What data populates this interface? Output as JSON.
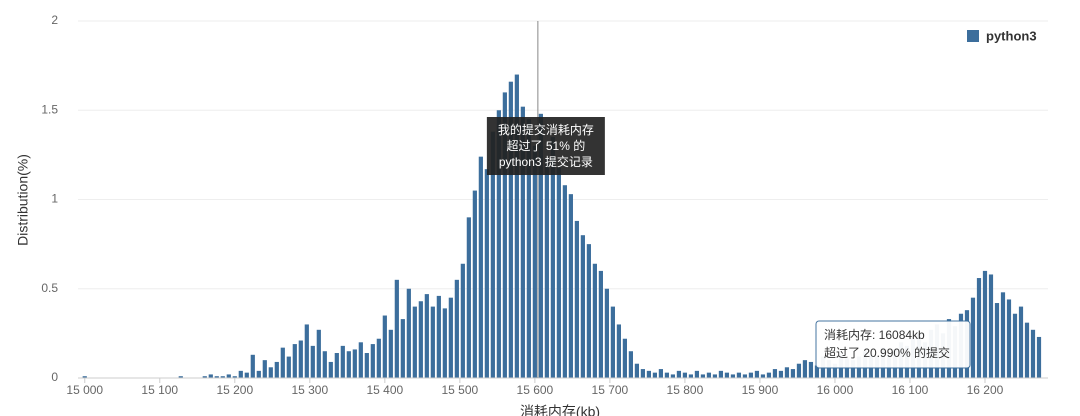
{
  "chart_data": {
    "type": "bar",
    "xlabel": "消耗内存(kb)",
    "ylabel": "Distribution(%)",
    "series": [
      {
        "name": "python3",
        "color": "#3c6e9c"
      }
    ],
    "x": [
      15000,
      15008,
      15016,
      15024,
      15032,
      15040,
      15048,
      15056,
      15064,
      15072,
      15080,
      15088,
      15096,
      15104,
      15112,
      15120,
      15128,
      15136,
      15144,
      15152,
      15160,
      15168,
      15176,
      15184,
      15192,
      15200,
      15208,
      15216,
      15224,
      15232,
      15240,
      15248,
      15256,
      15264,
      15272,
      15280,
      15288,
      15296,
      15304,
      15312,
      15320,
      15328,
      15336,
      15344,
      15352,
      15360,
      15368,
      15376,
      15384,
      15392,
      15400,
      15408,
      15416,
      15424,
      15432,
      15440,
      15448,
      15456,
      15464,
      15472,
      15480,
      15488,
      15496,
      15504,
      15512,
      15520,
      15528,
      15536,
      15544,
      15552,
      15560,
      15568,
      15576,
      15584,
      15592,
      15600,
      15608,
      15616,
      15624,
      15632,
      15640,
      15648,
      15656,
      15664,
      15672,
      15680,
      15688,
      15696,
      15704,
      15712,
      15720,
      15728,
      15736,
      15744,
      15752,
      15760,
      15768,
      15776,
      15784,
      15792,
      15800,
      15808,
      15816,
      15824,
      15832,
      15840,
      15848,
      15856,
      15864,
      15872,
      15880,
      15888,
      15896,
      15904,
      15912,
      15920,
      15928,
      15936,
      15944,
      15952,
      15960,
      15968,
      15976,
      15984,
      15992,
      16000,
      16008,
      16016,
      16024,
      16032,
      16040,
      16048,
      16056,
      16064,
      16072,
      16080,
      16088,
      16096,
      16104,
      16112,
      16120,
      16128,
      16136,
      16144,
      16152,
      16160,
      16168,
      16176,
      16184,
      16192,
      16200,
      16208,
      16216,
      16224,
      16232,
      16240,
      16248,
      16256,
      16264,
      16272
    ],
    "values": [
      0.01,
      0,
      0,
      0,
      0,
      0,
      0,
      0,
      0,
      0,
      0,
      0,
      0,
      0,
      0,
      0,
      0.01,
      0,
      0,
      0,
      0.01,
      0.02,
      0.01,
      0.01,
      0.02,
      0.01,
      0.04,
      0.03,
      0.13,
      0.04,
      0.1,
      0.06,
      0.09,
      0.17,
      0.12,
      0.19,
      0.21,
      0.3,
      0.18,
      0.27,
      0.15,
      0.09,
      0.14,
      0.18,
      0.15,
      0.16,
      0.2,
      0.14,
      0.19,
      0.22,
      0.35,
      0.27,
      0.55,
      0.33,
      0.5,
      0.4,
      0.43,
      0.47,
      0.4,
      0.46,
      0.39,
      0.45,
      0.55,
      0.64,
      0.9,
      1.05,
      1.24,
      1.17,
      1.38,
      1.5,
      1.6,
      1.66,
      1.7,
      1.52,
      1.45,
      1.3,
      1.48,
      1.23,
      1.35,
      1.18,
      1.08,
      1.03,
      0.88,
      0.8,
      0.75,
      0.64,
      0.6,
      0.5,
      0.4,
      0.3,
      0.22,
      0.15,
      0.08,
      0.05,
      0.04,
      0.03,
      0.05,
      0.03,
      0.02,
      0.04,
      0.03,
      0.02,
      0.04,
      0.02,
      0.03,
      0.02,
      0.04,
      0.03,
      0.02,
      0.03,
      0.02,
      0.03,
      0.04,
      0.02,
      0.03,
      0.05,
      0.04,
      0.06,
      0.05,
      0.08,
      0.1,
      0.09,
      0.07,
      0.12,
      0.1,
      0.08,
      0.13,
      0.11,
      0.1,
      0.12,
      0.15,
      0.13,
      0.12,
      0.17,
      0.14,
      0.16,
      0.2,
      0.18,
      0.22,
      0.25,
      0.2,
      0.27,
      0.3,
      0.25,
      0.33,
      0.29,
      0.36,
      0.38,
      0.45,
      0.56,
      0.6,
      0.58,
      0.42,
      0.48,
      0.44,
      0.36,
      0.4,
      0.31,
      0.27,
      0.23
    ],
    "xlim": [
      14991,
      16284
    ],
    "ylim": [
      0,
      2
    ],
    "xticks": [
      {
        "value": 15000,
        "label": "15 000"
      },
      {
        "value": 15100,
        "label": "15 100"
      },
      {
        "value": 15200,
        "label": "15 200"
      },
      {
        "value": 15300,
        "label": "15 300"
      },
      {
        "value": 15400,
        "label": "15 400"
      },
      {
        "value": 15500,
        "label": "15 500"
      },
      {
        "value": 15600,
        "label": "15 600"
      },
      {
        "value": 15700,
        "label": "15 700"
      },
      {
        "value": 15800,
        "label": "15 800"
      },
      {
        "value": 15900,
        "label": "15 900"
      },
      {
        "value": 16000,
        "label": "16 000"
      },
      {
        "value": 16100,
        "label": "16 100"
      },
      {
        "value": 16200,
        "label": "16 200"
      }
    ],
    "yticks": [
      0,
      0.5,
      1,
      1.5,
      2
    ],
    "grid": true,
    "legend": "top-right",
    "marker": {
      "x": 15604,
      "text": [
        "我的提交消耗内存",
        "超过了 51% 的",
        "python3 提交记录"
      ]
    },
    "tooltip": {
      "text": [
        "消耗内存: 16084kb",
        "超过了 20.990% 的提交"
      ]
    }
  }
}
